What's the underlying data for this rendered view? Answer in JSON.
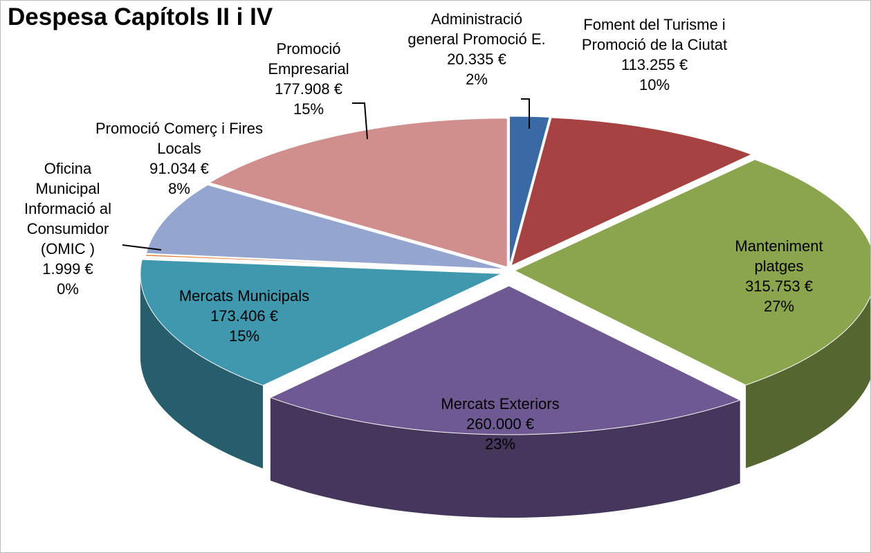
{
  "chart_data": {
    "type": "pie",
    "title": "Despesa Capítols II i IV",
    "categories": [
      "Administració general Promoció E.",
      "Foment del Turisme i Promoció de la Ciutat",
      "Manteniment platges",
      "Mercats Exteriors",
      "Mercats Municipals",
      "Oficina Municipal Informació al Consumidor (OMIC )",
      "Promoció Comerç i Fires Locals",
      "Promoció Empresarial"
    ],
    "values": [
      20335,
      113255,
      315753,
      260000,
      173406,
      1999,
      91034,
      177908
    ],
    "value_labels": [
      "20.335 €",
      "113.255 €",
      "315.753 €",
      "260.000 €",
      "173.406 €",
      "1.999 €",
      "91.034 €",
      "177.908 €"
    ],
    "percentage_labels": [
      "2%",
      "10%",
      "27%",
      "23%",
      "15%",
      "0%",
      "8%",
      "15%"
    ],
    "colors": [
      "#3a6aa3",
      "#a64241",
      "#8aa54e",
      "#6f5992",
      "#3f98ae",
      "#e27a2a",
      "#94a6cf",
      "#d08e8d"
    ]
  }
}
